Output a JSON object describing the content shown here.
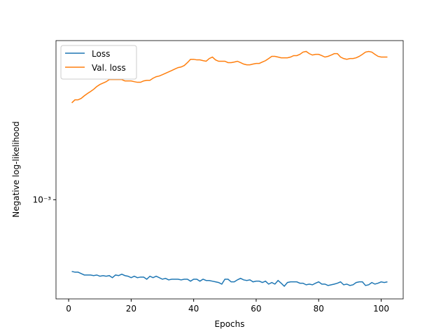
{
  "chart_data": {
    "type": "line",
    "xlabel": "Epochs",
    "ylabel": "Negative log-likelihood",
    "x": [
      1,
      2,
      3,
      4,
      5,
      6,
      7,
      8,
      9,
      10,
      11,
      12,
      13,
      14,
      15,
      16,
      17,
      18,
      19,
      20,
      21,
      22,
      23,
      24,
      25,
      26,
      27,
      28,
      29,
      30,
      31,
      32,
      33,
      34,
      35,
      36,
      37,
      38,
      39,
      40,
      41,
      42,
      43,
      44,
      45,
      46,
      47,
      48,
      49,
      50,
      51,
      52,
      53,
      54,
      55,
      56,
      57,
      58,
      59,
      60,
      61,
      62,
      63,
      64,
      65,
      66,
      67,
      68,
      69,
      70,
      71,
      72,
      73,
      74,
      75,
      76,
      77,
      78,
      79,
      80,
      81,
      82,
      83,
      84,
      85,
      86,
      87,
      88,
      89,
      90,
      91,
      92,
      93,
      94,
      95,
      96,
      97,
      98,
      99,
      100,
      101,
      102
    ],
    "series": [
      {
        "name": "Loss",
        "color": "#1f77b4",
        "values": [
          0.000419,
          0.000415,
          0.000415,
          0.000408,
          0.000401,
          0.000401,
          0.000401,
          0.000398,
          0.000401,
          0.000395,
          0.000398,
          0.000395,
          0.000398,
          0.000388,
          0.000401,
          0.000398,
          0.000405,
          0.000398,
          0.000395,
          0.000388,
          0.000395,
          0.000388,
          0.000391,
          0.000391,
          0.000381,
          0.000395,
          0.000388,
          0.000395,
          0.000388,
          0.000381,
          0.000385,
          0.000378,
          0.000381,
          0.000381,
          0.000381,
          0.000378,
          0.000381,
          0.000381,
          0.000372,
          0.000381,
          0.000381,
          0.000372,
          0.000381,
          0.000375,
          0.000375,
          0.000372,
          0.000369,
          0.000366,
          0.000359,
          0.000381,
          0.000381,
          0.000369,
          0.000369,
          0.000378,
          0.000385,
          0.000378,
          0.000375,
          0.000378,
          0.000369,
          0.000372,
          0.000372,
          0.000366,
          0.000372,
          0.000359,
          0.000366,
          0.000359,
          0.000375,
          0.000363,
          0.00035,
          0.000366,
          0.000369,
          0.000369,
          0.000369,
          0.000363,
          0.000363,
          0.000356,
          0.000359,
          0.000356,
          0.000363,
          0.000369,
          0.000359,
          0.000359,
          0.000353,
          0.000356,
          0.000359,
          0.000363,
          0.000369,
          0.000356,
          0.000359,
          0.000353,
          0.000356,
          0.000366,
          0.000369,
          0.000369,
          0.000353,
          0.000356,
          0.000366,
          0.000359,
          0.000363,
          0.000369,
          0.000366,
          0.000369
        ]
      },
      {
        "name": "Val. loss",
        "color": "#ff7f0e",
        "values": [
          0.00324,
          0.00336,
          0.00336,
          0.00342,
          0.00353,
          0.00363,
          0.00372,
          0.00382,
          0.00395,
          0.00405,
          0.00412,
          0.00419,
          0.0043,
          0.0043,
          0.0043,
          0.0043,
          0.0043,
          0.00423,
          0.00423,
          0.00423,
          0.00419,
          0.00416,
          0.00416,
          0.00423,
          0.00426,
          0.00426,
          0.00437,
          0.00445,
          0.00449,
          0.00456,
          0.00464,
          0.00472,
          0.0048,
          0.00489,
          0.00497,
          0.00501,
          0.0051,
          0.00528,
          0.0055,
          0.0055,
          0.00546,
          0.00546,
          0.00541,
          0.00537,
          0.00555,
          0.00565,
          0.00546,
          0.00537,
          0.00537,
          0.00537,
          0.00528,
          0.00528,
          0.00532,
          0.00537,
          0.00528,
          0.00519,
          0.00514,
          0.00514,
          0.00519,
          0.00523,
          0.00523,
          0.00532,
          0.00541,
          0.00555,
          0.0057,
          0.0057,
          0.00565,
          0.0056,
          0.0056,
          0.0056,
          0.00565,
          0.00575,
          0.00575,
          0.00584,
          0.006,
          0.00605,
          0.00589,
          0.00579,
          0.00584,
          0.00584,
          0.00575,
          0.00565,
          0.0057,
          0.00579,
          0.00589,
          0.00589,
          0.00565,
          0.00555,
          0.0055,
          0.00555,
          0.00555,
          0.0056,
          0.0057,
          0.00584,
          0.006,
          0.00605,
          0.006,
          0.00584,
          0.0057,
          0.00565,
          0.00565,
          0.00565
        ]
      }
    ],
    "xlim": [
      -4.05,
      107.05
    ],
    "xticks": [
      0,
      20,
      40,
      60,
      80,
      100
    ],
    "ylim": [
      0.0003,
      0.0069
    ],
    "yticks": [
      {
        "value": 0.001,
        "label": "10⁻³"
      }
    ],
    "log_y": true,
    "legend": "upper left"
  }
}
